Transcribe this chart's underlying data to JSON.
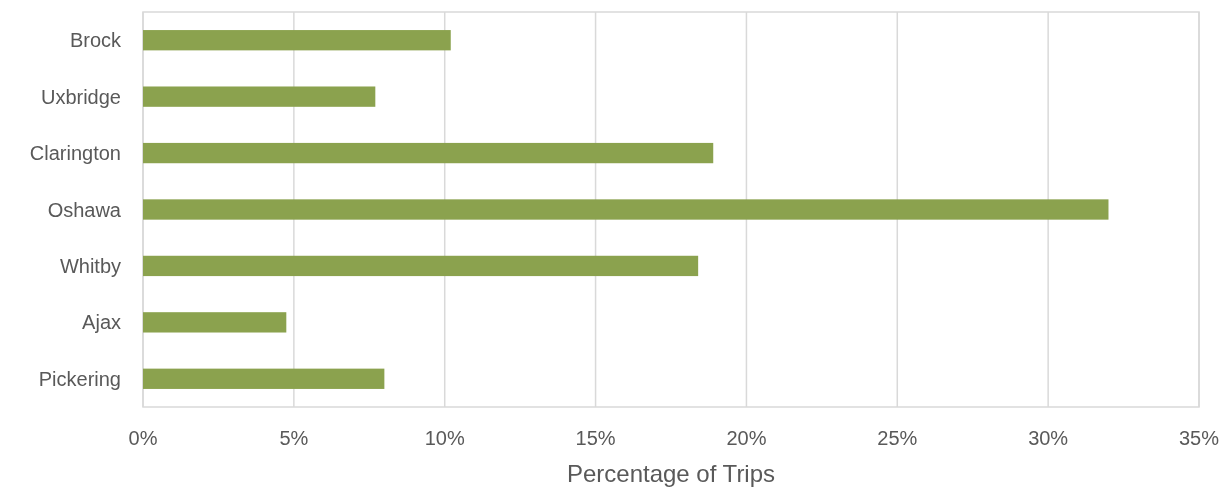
{
  "chart_data": {
    "type": "bar",
    "orientation": "horizontal",
    "xlabel": "Percentage of Trips",
    "categories": [
      "Brock",
      "Uxbridge",
      "Clarington",
      "Oshawa",
      "Whitby",
      "Ajax",
      "Pickering"
    ],
    "values": [
      10.2,
      7.7,
      18.9,
      32.0,
      18.4,
      4.75,
      8.0
    ],
    "color": "#8ba24e",
    "xlim": [
      0,
      35
    ],
    "xticks": [
      {
        "value": 0,
        "label": "0%"
      },
      {
        "value": 5,
        "label": "5%"
      },
      {
        "value": 10,
        "label": "10%"
      },
      {
        "value": 15,
        "label": "15%"
      },
      {
        "value": 20,
        "label": "20%"
      },
      {
        "value": 25,
        "label": "25%"
      },
      {
        "value": 30,
        "label": "30%"
      },
      {
        "value": 35,
        "label": "35%"
      }
    ],
    "grid": "x"
  }
}
